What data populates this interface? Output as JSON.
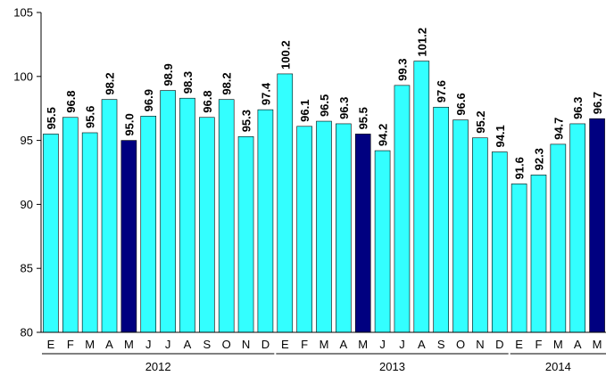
{
  "chart_data": {
    "type": "bar",
    "categories": [
      "E",
      "F",
      "M",
      "A",
      "M",
      "J",
      "J",
      "A",
      "S",
      "O",
      "N",
      "D",
      "E",
      "F",
      "M",
      "A",
      "M",
      "J",
      "J",
      "A",
      "S",
      "O",
      "N",
      "D",
      "E",
      "F",
      "M",
      "A",
      "M"
    ],
    "values": [
      95.5,
      96.8,
      95.6,
      98.2,
      95.0,
      96.9,
      98.9,
      98.3,
      96.8,
      98.2,
      95.3,
      97.4,
      100.2,
      96.1,
      96.5,
      96.3,
      95.5,
      94.2,
      99.3,
      101.2,
      97.6,
      96.6,
      95.2,
      94.1,
      91.6,
      92.3,
      94.7,
      96.3,
      96.7
    ],
    "value_labels": [
      "95.5",
      "96.8",
      "95.6",
      "98.2",
      "95.0",
      "96.9",
      "98.9",
      "98.3",
      "96.8",
      "98.2",
      "95.3",
      "97.4",
      "100.2",
      "96.1",
      "96.5",
      "96.3",
      "95.5",
      "94.2",
      "99.3",
      "101.2",
      "97.6",
      "96.6",
      "95.2",
      "94.1",
      "91.6",
      "92.3",
      "94.7",
      "96.3",
      "96.7"
    ],
    "highlighted_indices": [
      4,
      16,
      28
    ],
    "colors": {
      "default": "#33FFFF",
      "highlight": "#000080"
    },
    "ylim": [
      80,
      105
    ],
    "yticks": [
      80,
      85,
      90,
      95,
      100,
      105
    ],
    "groups": [
      {
        "label": "2012",
        "start": 0,
        "end": 11
      },
      {
        "label": "2013",
        "start": 12,
        "end": 23
      },
      {
        "label": "2014",
        "start": 24,
        "end": 28
      }
    ],
    "title": "",
    "xlabel": "",
    "ylabel": "",
    "grid": false,
    "legend": "none"
  }
}
